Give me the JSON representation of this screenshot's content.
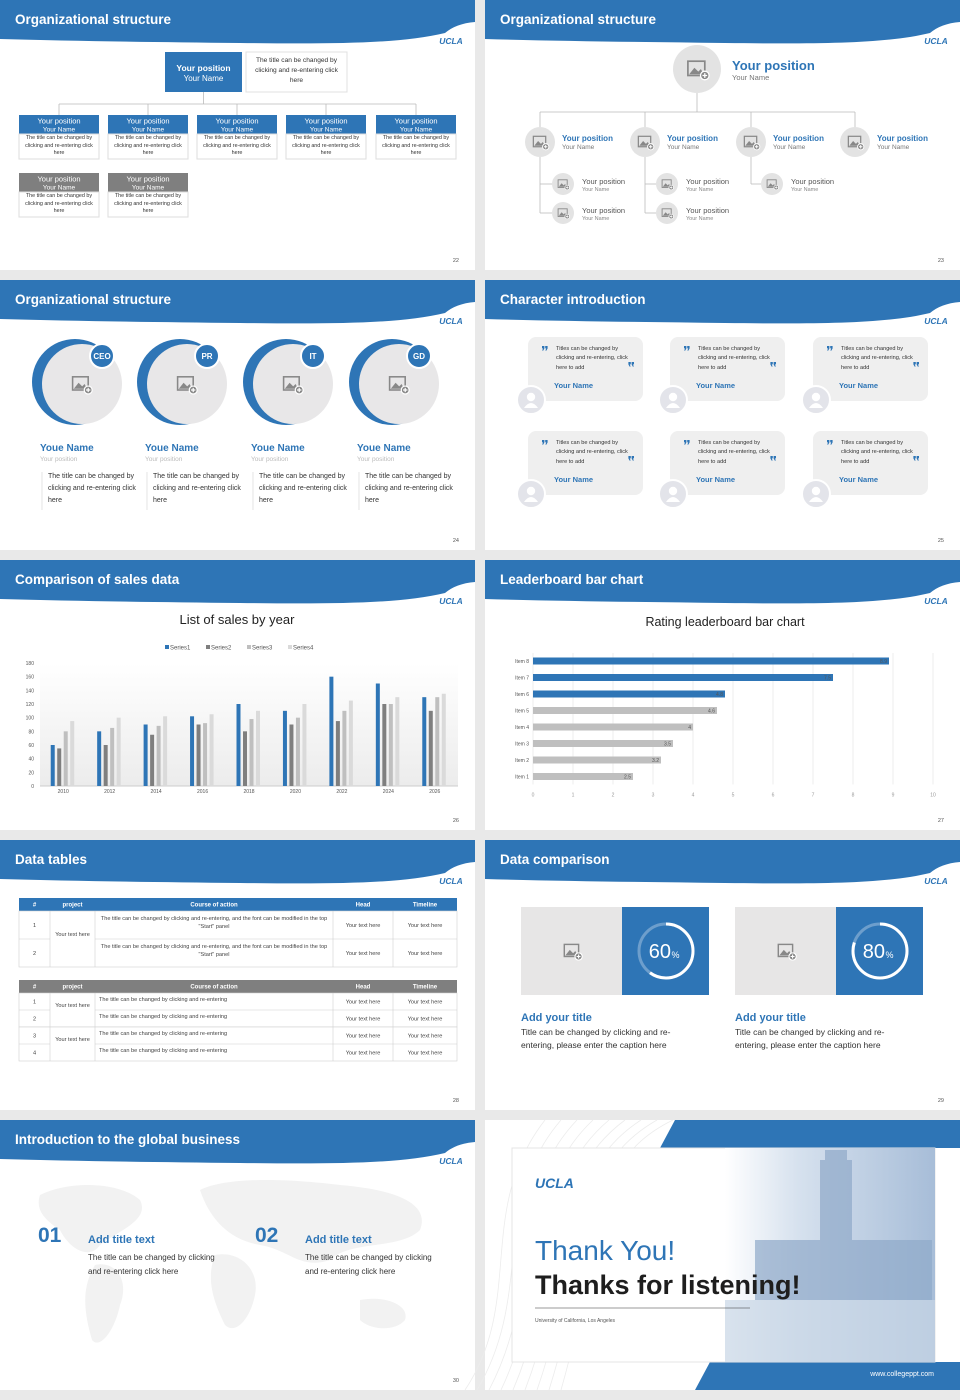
{
  "slides": [
    {
      "title": "Organizational structure",
      "logo": "UCLA",
      "page": 22,
      "head": {
        "position": "Your position",
        "name": "Your Name",
        "note": "The title can be changed by clicking and re-entering click here"
      },
      "boxes": [
        {
          "position": "Your position",
          "name": "Your Name",
          "note": "The title can be changed by clicking and re-entering click here"
        },
        {
          "position": "Your position",
          "name": "Your Name",
          "note": "The title can be changed by clicking and re-entering click here"
        },
        {
          "position": "Your position",
          "name": "Your Name",
          "note": "The title can be changed by clicking and re-entering click here"
        },
        {
          "position": "Your position",
          "name": "Your Name",
          "note": "The title can be changed by clicking and re-entering click here"
        },
        {
          "position": "Your position",
          "name": "Your Name",
          "note": "The title can be changed by clicking and re-entering click here"
        },
        {
          "position": "Your position",
          "name": "Your Name",
          "note": "The title can be changed by clicking and re-entering click here"
        },
        {
          "position": "Your position",
          "name": "Your Name",
          "note": "The title can be changed by clicking and re-entering click here"
        }
      ]
    },
    {
      "title": "Organizational structure",
      "logo": "UCLA",
      "page": 23,
      "head": {
        "position": "Your position",
        "name": "Your Name"
      },
      "level2": [
        {
          "position": "Your position",
          "name": "Your Name"
        },
        {
          "position": "Your position",
          "name": "Your Name"
        },
        {
          "position": "Your position",
          "name": "Your Name"
        },
        {
          "position": "Your position",
          "name": "Your Name"
        }
      ],
      "level3": [
        [
          {
            "position": "Your position",
            "name": "Your Name"
          },
          {
            "position": "Your position",
            "name": "Your Name"
          }
        ],
        [
          {
            "position": "Your position",
            "name": "Your Name"
          },
          {
            "position": "Your position",
            "name": "Your Name"
          }
        ],
        [
          {
            "position": "Your position",
            "name": "Your Name"
          }
        ]
      ]
    },
    {
      "title": "Organizational structure",
      "logo": "UCLA",
      "page": 24,
      "members": [
        {
          "badge": "CEO",
          "name": "Youe Name",
          "position": "Your position",
          "note": "The title can be changed by clicking and re-entering click here"
        },
        {
          "badge": "PR",
          "name": "Youe Name",
          "position": "Your position",
          "note": "The title can be changed by clicking and re-entering click here"
        },
        {
          "badge": "IT",
          "name": "Youe Name",
          "position": "Your position",
          "note": "The title can be changed by clicking and re-entering click here"
        },
        {
          "badge": "GD",
          "name": "Youe Name",
          "position": "Your position",
          "note": "The title can be changed by clicking and re-entering click here"
        }
      ]
    },
    {
      "title": "Character introduction",
      "logo": "UCLA",
      "page": 25,
      "quotes": [
        {
          "text": "Titles can be changed by clicking and re-entering, click here to add",
          "name": "Your Name"
        },
        {
          "text": "Titles can be changed by clicking and re-entering, click here to add",
          "name": "Your Name"
        },
        {
          "text": "Titles can be changed by clicking and re-entering, click here to add",
          "name": "Your Name"
        },
        {
          "text": "Titles can be changed by clicking and re-entering, click here to add",
          "name": "Your Name"
        },
        {
          "text": "Titles can be changed by clicking and re-entering, click here to add",
          "name": "Your Name"
        },
        {
          "text": "Titles can be changed by clicking and re-entering, click here to add",
          "name": "Your Name"
        }
      ]
    },
    {
      "title": "Comparison of sales data",
      "logo": "UCLA",
      "page": 26,
      "chart_data": {
        "type": "bar",
        "title": "List of sales by year",
        "categories": [
          "2010",
          "2012",
          "2014",
          "2016",
          "2018",
          "2020",
          "2022",
          "2024",
          "2026"
        ],
        "series": [
          {
            "name": "Series1",
            "color": "#2e75b6",
            "values": [
              60,
              80,
              90,
              102,
              120,
              110,
              160,
              150,
              130
            ]
          },
          {
            "name": "Series2",
            "color": "#7f7f7f",
            "values": [
              55,
              60,
              75,
              90,
              80,
              90,
              95,
              120,
              110
            ]
          },
          {
            "name": "Series3",
            "color": "#bfbfbf",
            "values": [
              80,
              85,
              88,
              92,
              98,
              100,
              110,
              120,
              130
            ]
          },
          {
            "name": "Series4",
            "color": "#dadada",
            "values": [
              95,
              100,
              102,
              105,
              110,
              120,
              125,
              130,
              135
            ]
          }
        ],
        "ylim": [
          0,
          180
        ],
        "yticks": [
          0,
          20,
          40,
          60,
          80,
          100,
          120,
          140,
          160,
          180
        ],
        "grid": false,
        "legend": "top"
      }
    },
    {
      "title": "Leaderboard bar chart",
      "logo": "UCLA",
      "page": 27,
      "chart_data": {
        "type": "hbar",
        "title": "Rating leaderboard bar chart",
        "categories": [
          "Item 1",
          "Item 2",
          "Item 3",
          "Item 4",
          "Item 5",
          "Item 6",
          "Item 7",
          "Item 8"
        ],
        "values": [
          2.5,
          3.2,
          3.5,
          4,
          4.6,
          4.8,
          7.5,
          8.9
        ],
        "colors": [
          "#bfbfbf",
          "#bfbfbf",
          "#bfbfbf",
          "#bfbfbf",
          "#bfbfbf",
          "#2e75b6",
          "#2e75b6",
          "#2e75b6"
        ],
        "xlim": [
          0,
          10
        ],
        "xticks": [
          0,
          1,
          2,
          3,
          4,
          5,
          6,
          7,
          8,
          9,
          10
        ],
        "grid": true
      }
    },
    {
      "title": "Data tables",
      "logo": "UCLA",
      "page": 28,
      "tables": [
        {
          "header": [
            "#",
            "project",
            "Course of action",
            "Head",
            "Timeline"
          ],
          "color": "#2e75b6",
          "groups": [
            {
              "project": "Your text here",
              "rows": [
                {
                  "no": 1,
                  "action": "The title can be changed by clicking and re-entering, and the font can be modified in the top \"Start\" panel",
                  "head": "Your text here",
                  "timeline": "Your text here"
                },
                {
                  "no": 2,
                  "action": "The title can be changed by clicking and re-entering, and the font can be modified in the top \"Start\" panel",
                  "head": "Your text here",
                  "timeline": "Your text here"
                }
              ]
            }
          ]
        },
        {
          "header": [
            "#",
            "project",
            "Course of action",
            "Head",
            "Timeline"
          ],
          "color": "#7f7f7f",
          "groups": [
            {
              "project": "Your text here",
              "rows": [
                {
                  "no": 1,
                  "action": "The title can be changed by clicking and re-entering",
                  "head": "Your text here",
                  "timeline": "Your text here"
                },
                {
                  "no": 2,
                  "action": "The title can be changed by clicking and re-entering",
                  "head": "Your text here",
                  "timeline": "Your text here"
                }
              ]
            },
            {
              "project": "Your text here",
              "rows": [
                {
                  "no": 3,
                  "action": "The title can be changed by clicking and re-entering",
                  "head": "Your text here",
                  "timeline": "Your text here"
                },
                {
                  "no": 4,
                  "action": "The title can be changed by clicking and re-entering",
                  "head": "Your text here",
                  "timeline": "Your text here"
                }
              ]
            }
          ]
        }
      ]
    },
    {
      "title": "Data comparison",
      "logo": "UCLA",
      "page": 29,
      "cards": [
        {
          "percent": 60,
          "unit": "%",
          "title": "Add your title",
          "text": "Title can be changed by clicking and re-entering, please enter the caption here"
        },
        {
          "percent": 80,
          "unit": "%",
          "title": "Add your title",
          "text": "Title can be changed by clicking and re-entering, please enter the caption here"
        }
      ]
    },
    {
      "title": "Introduction to the global business",
      "logo": "UCLA",
      "page": 30,
      "items": [
        {
          "num": "01",
          "title": "Add title text",
          "text": "The title can be changed by clicking and re-entering click here"
        },
        {
          "num": "02",
          "title": "Add title text",
          "text": "The title can be changed by clicking and re-entering click here"
        }
      ]
    },
    {
      "logo": "UCLA",
      "thanks": "Thank You!",
      "subtitle": "Thanks for listening!",
      "caption": "University of California, Los Angeles",
      "url": "www.collegeppt.com"
    }
  ]
}
